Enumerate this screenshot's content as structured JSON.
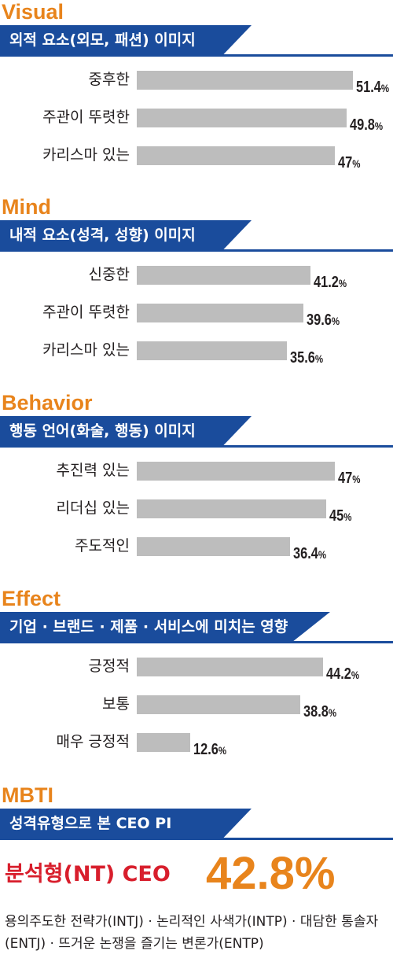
{
  "colors": {
    "heading": "#e8841c",
    "banner": "#1a4c9c",
    "bar": "#bdbdbd",
    "highlight_label": "#d81e2c",
    "highlight_value": "#e8841c"
  },
  "chart_data": [
    {
      "type": "bar",
      "title": "Visual",
      "subtitle": "외적 요소(외모, 패션) 이미지",
      "categories": [
        "중후한",
        "주관이 뚜렷한",
        "카리스마 있는"
      ],
      "values": [
        51.4,
        49.8,
        47
      ],
      "value_labels": [
        "51.4",
        "49.8",
        "47"
      ],
      "unit": "%",
      "xlim": [
        0,
        56
      ]
    },
    {
      "type": "bar",
      "title": "Mind",
      "subtitle": "내적 요소(성격, 성향) 이미지",
      "categories": [
        "신중한",
        "주관이 뚜렷한",
        "카리스마 있는"
      ],
      "values": [
        41.2,
        39.6,
        35.6
      ],
      "value_labels": [
        "41.2",
        "39.6",
        "35.6"
      ],
      "unit": "%",
      "xlim": [
        0,
        56
      ]
    },
    {
      "type": "bar",
      "title": "Behavior",
      "subtitle": "행동 언어(화술, 행동) 이미지",
      "categories": [
        "추진력 있는",
        "리더십 있는",
        "주도적인"
      ],
      "values": [
        47,
        45,
        36.4
      ],
      "value_labels": [
        "47",
        "45",
        "36.4"
      ],
      "unit": "%",
      "xlim": [
        0,
        56
      ]
    },
    {
      "type": "bar",
      "title": "Effect",
      "subtitle": "기업 · 브랜드 · 제품 · 서비스에 미치는 영향",
      "categories": [
        "긍정적",
        "보통",
        "매우 긍정적"
      ],
      "values": [
        44.2,
        38.8,
        12.6
      ],
      "value_labels": [
        "44.2",
        "38.8",
        "12.6"
      ],
      "unit": "%",
      "xlim": [
        0,
        56
      ]
    }
  ],
  "mbti": {
    "title": "MBTI",
    "subtitle": "성격유형으로 본 CEO PI",
    "highlight_label": "분석형(NT) CEO",
    "highlight_value": "42.8%",
    "description": "용의주도한 전략가(INTJ) · 논리적인 사색가(INTP) · 대담한 통솔자(ENTJ) · 뜨거운 논쟁을 즐기는 변론가(ENTP)"
  }
}
